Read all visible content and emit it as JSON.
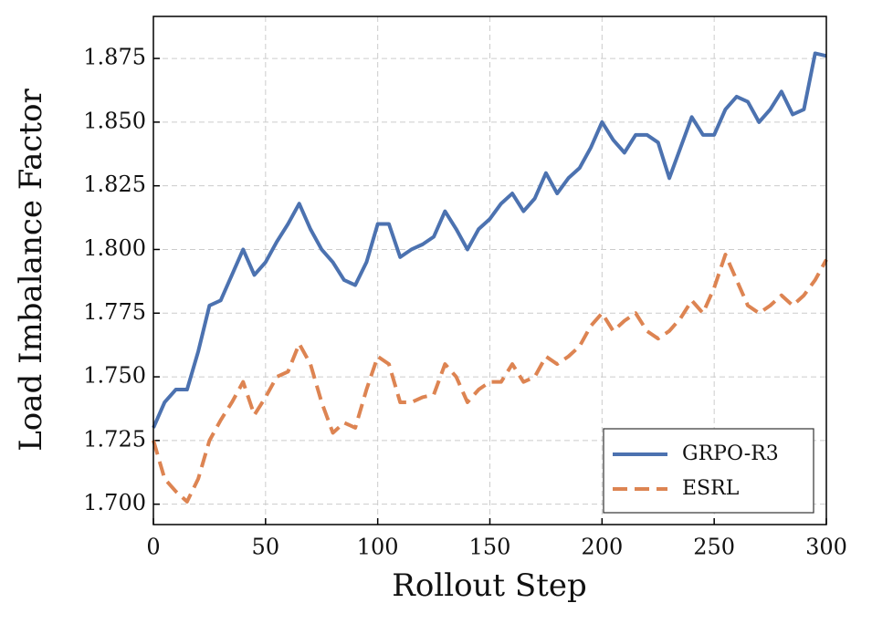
{
  "chart_data": {
    "type": "line",
    "xlabel": "Rollout Step",
    "ylabel": "Load Imbalance Factor",
    "x": [
      0,
      5,
      10,
      15,
      20,
      25,
      30,
      35,
      40,
      45,
      50,
      55,
      60,
      65,
      70,
      75,
      80,
      85,
      90,
      95,
      100,
      105,
      110,
      115,
      120,
      125,
      130,
      135,
      140,
      145,
      150,
      155,
      160,
      165,
      170,
      175,
      180,
      185,
      190,
      195,
      200,
      205,
      210,
      215,
      220,
      225,
      230,
      235,
      240,
      245,
      250,
      255,
      260,
      265,
      270,
      275,
      280,
      285,
      290,
      295,
      300
    ],
    "series": [
      {
        "name": "GRPO-R3",
        "color": "#4c72b0",
        "dash": "solid",
        "values": [
          1.73,
          1.74,
          1.745,
          1.745,
          1.76,
          1.778,
          1.78,
          1.79,
          1.8,
          1.79,
          1.795,
          1.803,
          1.81,
          1.818,
          1.808,
          1.8,
          1.795,
          1.788,
          1.786,
          1.795,
          1.81,
          1.81,
          1.797,
          1.8,
          1.802,
          1.805,
          1.815,
          1.808,
          1.8,
          1.808,
          1.812,
          1.818,
          1.822,
          1.815,
          1.82,
          1.83,
          1.822,
          1.828,
          1.832,
          1.84,
          1.85,
          1.843,
          1.838,
          1.845,
          1.845,
          1.842,
          1.828,
          1.84,
          1.852,
          1.845,
          1.845,
          1.855,
          1.86,
          1.858,
          1.85,
          1.855,
          1.862,
          1.853,
          1.855,
          1.877,
          1.876
        ]
      },
      {
        "name": "ESRL",
        "color": "#dd8452",
        "dash": "dashed",
        "values": [
          1.725,
          1.71,
          1.705,
          1.701,
          1.71,
          1.725,
          1.733,
          1.74,
          1.748,
          1.735,
          1.742,
          1.75,
          1.752,
          1.763,
          1.755,
          1.74,
          1.728,
          1.732,
          1.73,
          1.745,
          1.758,
          1.755,
          1.74,
          1.74,
          1.742,
          1.743,
          1.755,
          1.75,
          1.74,
          1.745,
          1.748,
          1.748,
          1.755,
          1.748,
          1.75,
          1.758,
          1.755,
          1.758,
          1.762,
          1.77,
          1.775,
          1.768,
          1.772,
          1.775,
          1.768,
          1.765,
          1.768,
          1.773,
          1.78,
          1.775,
          1.785,
          1.798,
          1.788,
          1.778,
          1.775,
          1.778,
          1.782,
          1.778,
          1.782,
          1.788,
          1.796
        ]
      }
    ],
    "xlim": [
      0,
      300
    ],
    "xticks": [
      0,
      50,
      100,
      150,
      200,
      250,
      300
    ],
    "ylim": [
      1.692,
      1.8915
    ],
    "yticks": [
      {
        "value": 1.7,
        "label": "1.700"
      },
      {
        "value": 1.725,
        "label": "1.725"
      },
      {
        "value": 1.75,
        "label": "1.750"
      },
      {
        "value": 1.775,
        "label": "1.775"
      },
      {
        "value": 1.8,
        "label": "1.800"
      },
      {
        "value": 1.825,
        "label": "1.825"
      },
      {
        "value": 1.85,
        "label": "1.850"
      },
      {
        "value": 1.875,
        "label": "1.875"
      }
    ],
    "grid": true,
    "legend": "lower right"
  }
}
